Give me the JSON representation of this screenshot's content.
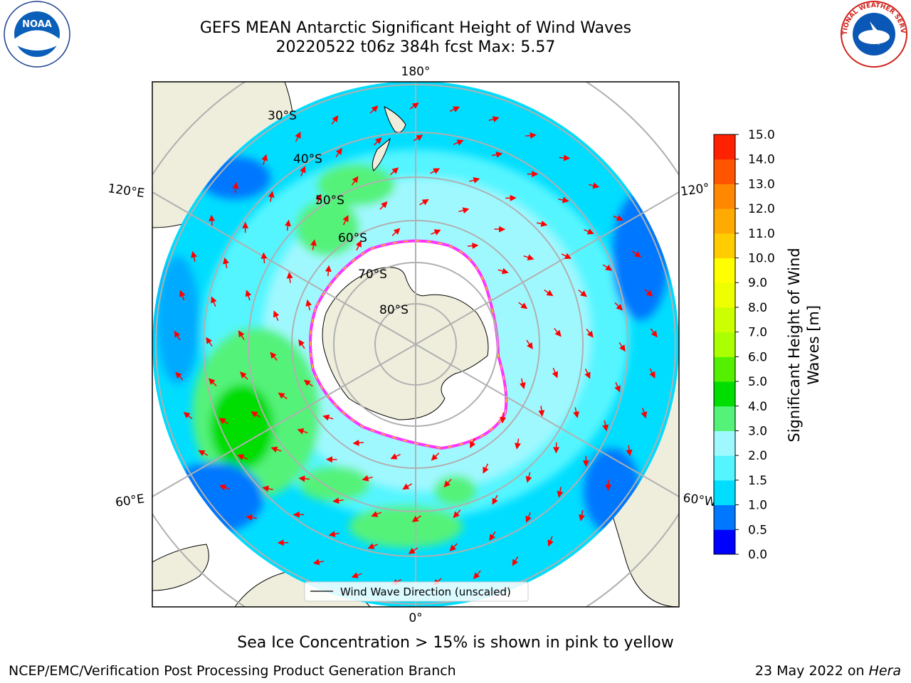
{
  "header": {
    "title_line1": "GEFS MEAN Antarctic Significant Height of Wind Waves",
    "title_line2": "20220522 t06z 384h fcst   Max: 5.57"
  },
  "logos": {
    "left": {
      "name": "NOAA",
      "ring_text": "NATIONAL OCEANIC AND ATMOSPHERIC ADMINISTRATION · U.S. DEPARTMENT OF COMMERCE"
    },
    "right": {
      "name": "NATIONAL WEATHER SERVICE"
    }
  },
  "map": {
    "projection": "south-polar-stereographic",
    "longitude_labels": {
      "top": "180°",
      "bottom": "0°",
      "left_upper": "120°E",
      "left_lower": "60°E",
      "right_upper": "120°",
      "right_lower": "60°W"
    },
    "latitude_labels": [
      "30°S",
      "40°S",
      "50°S",
      "60°S",
      "70°S",
      "80°S"
    ],
    "legend_label": "Wind Wave Direction (unscaled)",
    "colors": {
      "land": "#efeedc",
      "ice": "#ffffff",
      "ice_edge": [
        "#ff33ff",
        "#ffcc00"
      ],
      "grid": "#b0b0b0",
      "arrow": "#ff0000"
    }
  },
  "colorbar": {
    "label": "Significant Height of Wind Waves [m]",
    "ticks": [
      "0.0",
      "0.5",
      "1.0",
      "1.5",
      "2.0",
      "3.0",
      "4.0",
      "5.0",
      "6.0",
      "7.0",
      "8.0",
      "9.0",
      "10.0",
      "11.0",
      "12.0",
      "13.0",
      "14.0",
      "15.0"
    ],
    "colors": [
      "#0000ff",
      "#0077ff",
      "#00ddff",
      "#55f5ff",
      "#a0f8ff",
      "#55f27a",
      "#00dd00",
      "#55f000",
      "#aaff00",
      "#ccff00",
      "#eeff00",
      "#ffff00",
      "#ffcc00",
      "#ffaa00",
      "#ff8800",
      "#ff5500",
      "#ff2200"
    ]
  },
  "footer": {
    "note": "Sea Ice Concentration > 15% is shown in pink to yellow",
    "credit": "NCEP/EMC/Verification Post Processing Product Generation Branch",
    "date": "23 May 2022 on ",
    "machine": "Hera"
  }
}
